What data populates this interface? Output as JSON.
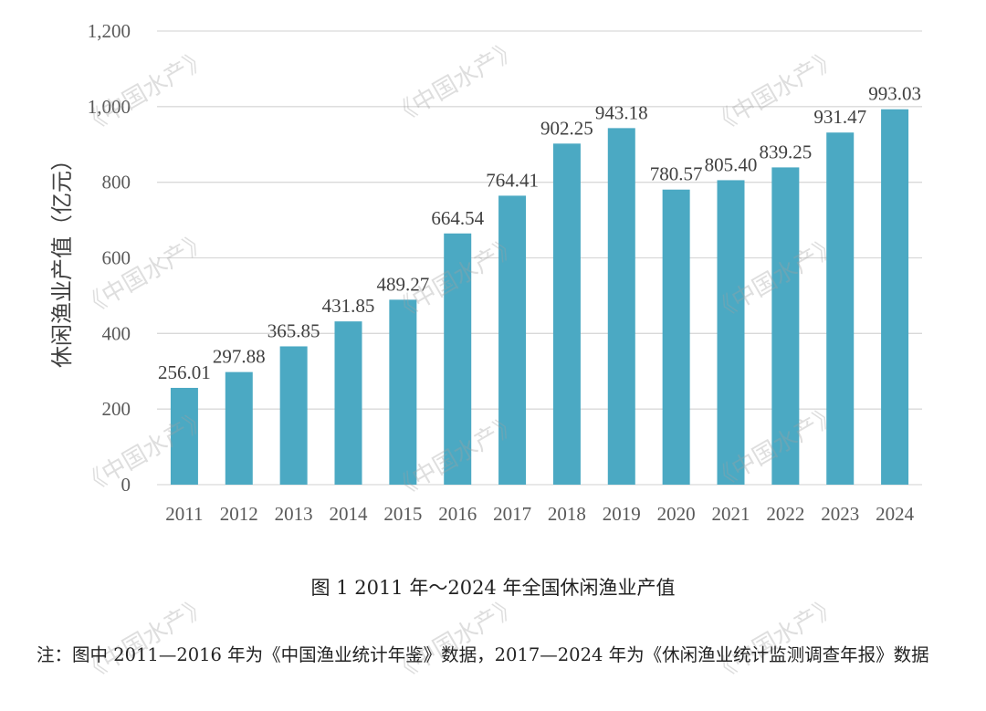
{
  "chart_data": {
    "type": "bar",
    "title": "",
    "xlabel": "",
    "ylabel": "休闲渔业产值（亿元）",
    "ylim": [
      0,
      1200
    ],
    "yticks": [
      0,
      200,
      400,
      600,
      800,
      1000,
      1200
    ],
    "ytick_labels": [
      "0",
      "200",
      "400",
      "600",
      "800",
      "1,000",
      "1,200"
    ],
    "grid": true,
    "legend": "none",
    "categories": [
      "2011",
      "2012",
      "2013",
      "2014",
      "2015",
      "2016",
      "2017",
      "2018",
      "2019",
      "2020",
      "2021",
      "2022",
      "2023",
      "2024"
    ],
    "values": [
      256.01,
      297.88,
      365.85,
      431.85,
      489.27,
      664.54,
      764.41,
      902.25,
      943.18,
      780.57,
      805.4,
      839.25,
      931.47,
      993.03
    ],
    "data_labels": [
      "256.01",
      "297.88",
      "365.85",
      "431.85",
      "489.27",
      "664.54",
      "764.41",
      "902.25",
      "943.18",
      "780.57",
      "805.40",
      "839.25",
      "931.47",
      "993.03"
    ],
    "bar_color": "#4BA9C3",
    "grid_color": "#D9D9D9"
  },
  "caption": "图 1 2011 年～2024 年全国休闲渔业产值",
  "note": "注：图中 2011—2016 年为《中国渔业统计年鉴》数据，2017—2024 年为《休闲渔业统计监测调查年报》数据",
  "watermark": "《中国水产》"
}
